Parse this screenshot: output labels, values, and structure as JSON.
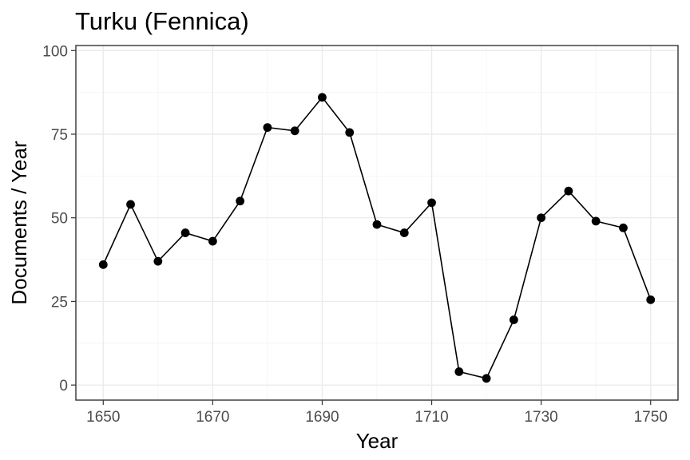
{
  "chart_data": {
    "type": "line",
    "title": "Turku (Fennica)",
    "xlabel": "Year",
    "ylabel": "Documents / Year",
    "xlim": [
      1645,
      1755
    ],
    "ylim": [
      -4.5,
      101.5
    ],
    "x_ticks": [
      1650,
      1670,
      1690,
      1710,
      1730,
      1750
    ],
    "y_ticks": [
      0,
      25,
      50,
      75,
      100
    ],
    "grid": true,
    "legend": "none",
    "colors": {
      "line": "#000000",
      "point": "#000000"
    },
    "series": [
      {
        "x": [
          1650,
          1655,
          1660,
          1665,
          1670,
          1675,
          1680,
          1685,
          1690,
          1695,
          1700,
          1705,
          1710,
          1715,
          1720,
          1725,
          1730,
          1735,
          1740,
          1745,
          1750
        ],
        "values": [
          36,
          54,
          37,
          45.5,
          43,
          55,
          77,
          76,
          86,
          75.5,
          48,
          45.5,
          54.5,
          4,
          2,
          19.5,
          50,
          58,
          49,
          47,
          25.5
        ]
      }
    ]
  }
}
